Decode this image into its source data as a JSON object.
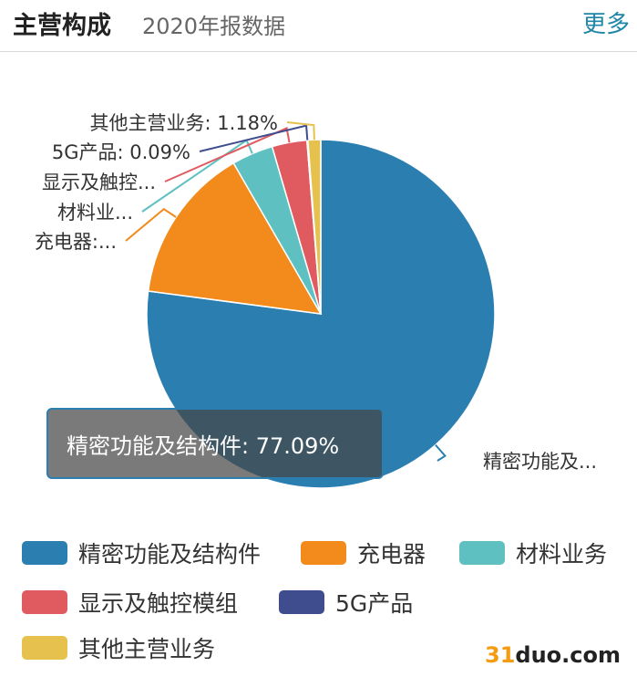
{
  "header": {
    "title": "主营构成",
    "subtitle": "2020年报数据",
    "more": "更多"
  },
  "tooltip": {
    "text": "精密功能及结构件: 77.09%"
  },
  "watermark": {
    "number": "31",
    "rest": "duo.com"
  },
  "chart_data": {
    "type": "pie",
    "start_angle_deg": 90,
    "direction": "clockwise",
    "slices": [
      {
        "name": "精密功能及结构件",
        "value": 77.09,
        "label": "精密功能及...",
        "color": "#2a7fb0"
      },
      {
        "name": "充电器",
        "value": 14.55,
        "label": "充电器:...",
        "color": "#f28a1c"
      },
      {
        "name": "材料业务",
        "value": 3.85,
        "label": "材料业...",
        "color": "#5fc0c1"
      },
      {
        "name": "显示及触控模组",
        "value": 3.24,
        "label": "显示及触控...",
        "color": "#df5b60"
      },
      {
        "name": "5G产品",
        "value": 0.09,
        "label": "5G产品: 0.09%",
        "color": "#3f4d8f"
      },
      {
        "name": "其他主营业务",
        "value": 1.18,
        "label": "其他主营业务: 1.18%",
        "color": "#e6c14e"
      }
    ],
    "legend_position": "bottom"
  }
}
